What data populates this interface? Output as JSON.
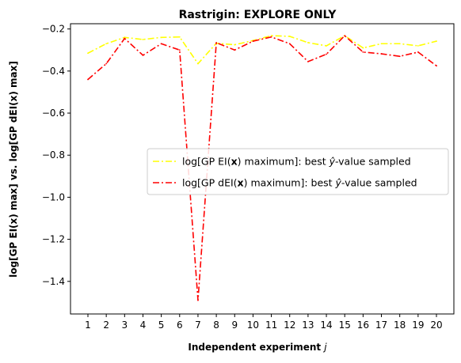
{
  "chart_data": {
    "type": "line",
    "title": "Rastrigin: EXPLORE ONLY",
    "xlabel_main": "Independent experiment ",
    "xlabel_var": "j",
    "ylabel": "log[GP EI(x) max] vs. log[GP dEI(x) max]",
    "x": [
      1,
      2,
      3,
      4,
      5,
      6,
      7,
      8,
      9,
      10,
      11,
      12,
      13,
      14,
      15,
      16,
      17,
      18,
      19,
      20
    ],
    "xticks": [
      "1",
      "2",
      "3",
      "4",
      "5",
      "6",
      "7",
      "8",
      "9",
      "10",
      "11",
      "12",
      "13",
      "14",
      "15",
      "16",
      "17",
      "18",
      "19",
      "20"
    ],
    "xlim": [
      0.05,
      20.95
    ],
    "ylim": [
      -1.555,
      -0.175
    ],
    "yticks": [
      -1.4,
      -1.2,
      -1.0,
      -0.8,
      -0.6,
      -0.4,
      -0.2
    ],
    "ytick_labels": [
      "−1.4",
      "−1.2",
      "−1.0",
      "−0.8",
      "−0.6",
      "−0.4",
      "−0.2"
    ],
    "grid": false,
    "legend_position": "center-right",
    "series": [
      {
        "name": "log[GP EI(x) maximum]: best ŷ-value sampled",
        "legend_prefix": "log[GP EI(",
        "legend_bold": "x",
        "legend_suffix": ") maximum]: best ",
        "legend_yhat": "ŷ",
        "legend_tail": "-value sampled",
        "color": "#ffff00",
        "values": [
          -0.315,
          -0.27,
          -0.24,
          -0.25,
          -0.24,
          -0.238,
          -0.365,
          -0.268,
          -0.275,
          -0.255,
          -0.232,
          -0.235,
          -0.265,
          -0.28,
          -0.232,
          -0.29,
          -0.27,
          -0.27,
          -0.28,
          -0.258
        ]
      },
      {
        "name": "log[GP dEI(x) maximum]: best ŷ-value sampled",
        "legend_prefix": "log[GP dEI(",
        "legend_bold": "x",
        "legend_suffix": ") maximum]: best ",
        "legend_yhat": "ŷ",
        "legend_tail": "-value sampled",
        "color": "#ff0000",
        "values": [
          -0.44,
          -0.365,
          -0.245,
          -0.325,
          -0.27,
          -0.3,
          -1.49,
          -0.265,
          -0.3,
          -0.258,
          -0.238,
          -0.27,
          -0.355,
          -0.32,
          -0.232,
          -0.31,
          -0.318,
          -0.33,
          -0.31,
          -0.375
        ]
      }
    ]
  }
}
